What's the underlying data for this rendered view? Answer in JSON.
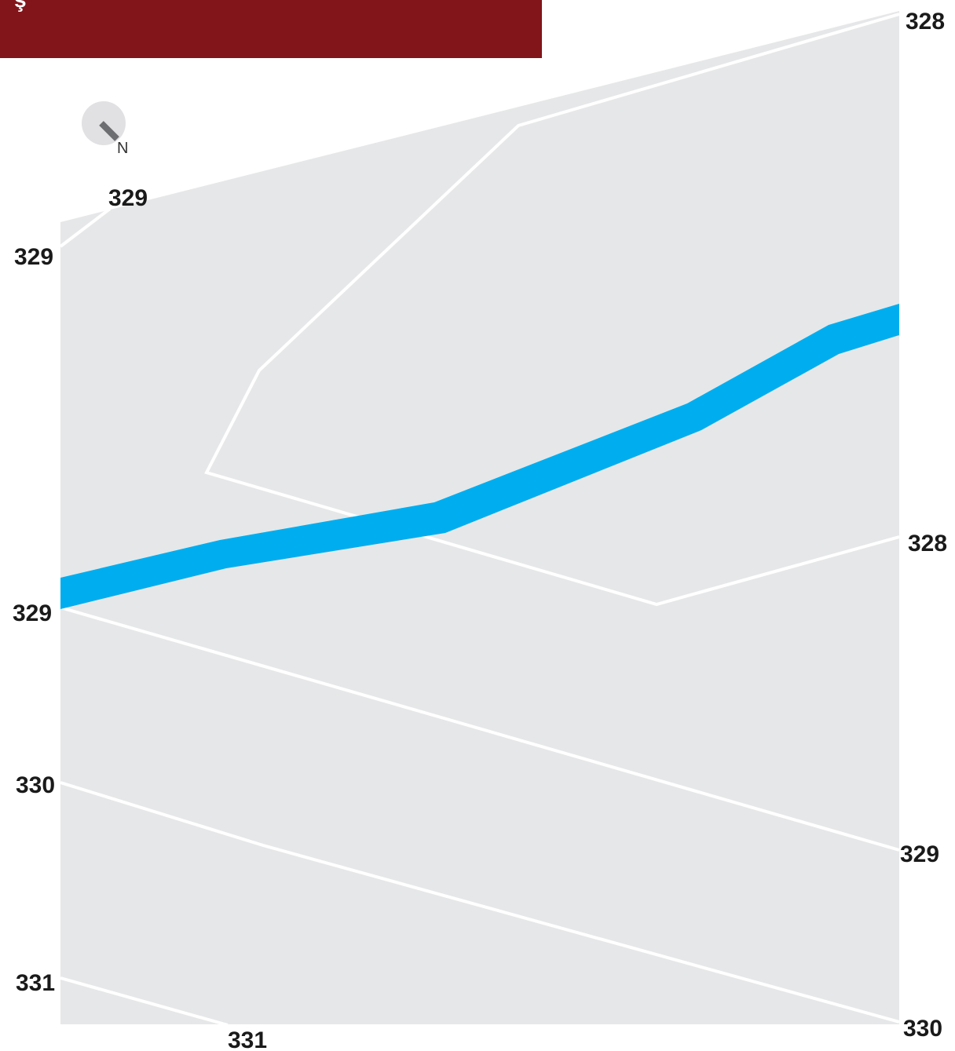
{
  "header": {
    "title": "ş",
    "banner_color": "#82151a"
  },
  "map": {
    "background_color": "#e6e7e8",
    "contour_color": "#ffffff",
    "river_color": "#00aeef",
    "features": [
      "contour-lines",
      "river",
      "north-arrow"
    ]
  },
  "north_arrow": {
    "letter": "N",
    "icon": "north-arrow-icon"
  },
  "contour_labels": {
    "top_right_328": "328",
    "top_left_329": "329",
    "left_329_upper": "329",
    "right_328_mid": "328",
    "left_329_mid": "329",
    "left_330": "330",
    "right_329": "329",
    "left_331": "331",
    "bottom_331": "331",
    "right_330": "330"
  }
}
